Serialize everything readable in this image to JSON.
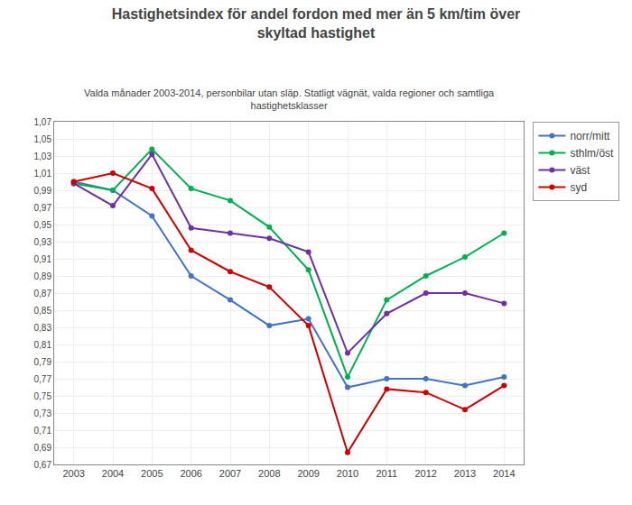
{
  "chart_data": {
    "type": "line",
    "title": "Hastighetsindex för andel fordon med mer än 5 km/tim över\nskyltad hastighet",
    "subtitle": "Valda månader 2003-2014, personbilar utan släp. Statligt vägnät, valda regioner och samtliga\nhastighetsklasser",
    "x": [
      2003,
      2004,
      2005,
      2006,
      2007,
      2008,
      2009,
      2010,
      2011,
      2012,
      2013,
      2014
    ],
    "series": [
      {
        "name": "norr/mitt",
        "color": "#4472C4",
        "values": [
          1.0,
          0.99,
          0.96,
          0.89,
          0.862,
          0.832,
          0.84,
          0.76,
          0.77,
          0.77,
          0.762,
          0.772
        ]
      },
      {
        "name": "sthlm/öst",
        "color": "#00B050",
        "values": [
          0.998,
          0.99,
          1.038,
          0.992,
          0.978,
          0.947,
          0.897,
          0.772,
          0.862,
          0.89,
          0.912,
          0.94
        ]
      },
      {
        "name": "väst",
        "color": "#7030A0",
        "values": [
          0.998,
          0.972,
          1.032,
          0.946,
          0.94,
          0.934,
          0.918,
          0.8,
          0.846,
          0.87,
          0.87,
          0.858
        ]
      },
      {
        "name": "syd",
        "color": "#CC0000",
        "values": [
          1.0,
          1.01,
          0.992,
          0.92,
          0.895,
          0.877,
          0.832,
          0.684,
          0.758,
          0.754,
          0.734,
          0.762
        ]
      }
    ],
    "xlim": [
      2002.5,
      2014.5
    ],
    "xticks": [
      2003,
      2004,
      2005,
      2006,
      2007,
      2008,
      2009,
      2010,
      2011,
      2012,
      2013,
      2014
    ],
    "ylim": [
      0.67,
      1.07
    ],
    "yticks": [
      {
        "value": 0.67,
        "label": "0,67"
      },
      {
        "value": 0.69,
        "label": "0,69"
      },
      {
        "value": 0.71,
        "label": "0,71"
      },
      {
        "value": 0.73,
        "label": "0,73"
      },
      {
        "value": 0.75,
        "label": "0,75"
      },
      {
        "value": 0.77,
        "label": "0,77"
      },
      {
        "value": 0.79,
        "label": "0,79"
      },
      {
        "value": 0.81,
        "label": "0,81"
      },
      {
        "value": 0.83,
        "label": "0,83"
      },
      {
        "value": 0.85,
        "label": "0,85"
      },
      {
        "value": 0.87,
        "label": "0,87"
      },
      {
        "value": 0.89,
        "label": "0,89"
      },
      {
        "value": 0.91,
        "label": "0,91"
      },
      {
        "value": 0.93,
        "label": "0,93"
      },
      {
        "value": 0.95,
        "label": "0,95"
      },
      {
        "value": 0.97,
        "label": "0,97"
      },
      {
        "value": 0.99,
        "label": "0,99"
      },
      {
        "value": 1.01,
        "label": "1,01"
      },
      {
        "value": 1.03,
        "label": "1,03"
      },
      {
        "value": 1.05,
        "label": "1,05"
      },
      {
        "value": 1.07,
        "label": "1,07"
      }
    ],
    "grid": true,
    "legend": "right",
    "marker": "circle"
  }
}
